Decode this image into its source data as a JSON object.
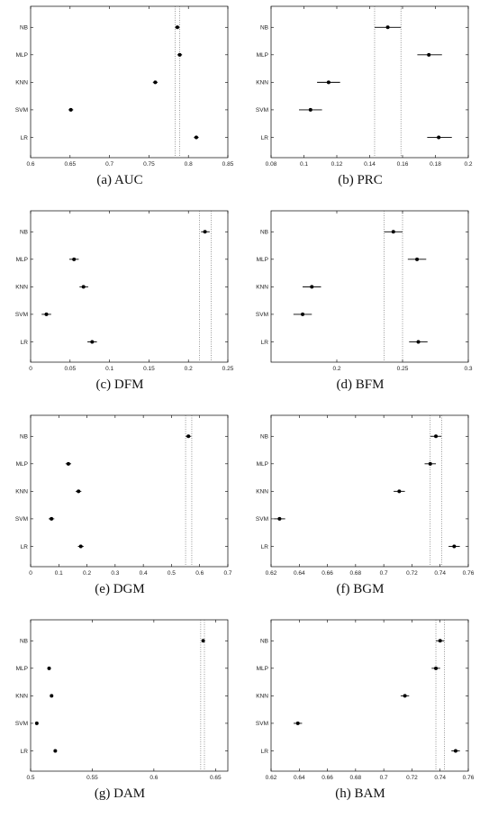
{
  "panels": [
    {
      "id": "a",
      "caption": "(a)  AUC",
      "categories": [
        "NB",
        "MLP",
        "KNN",
        "SVM",
        "LR"
      ],
      "xlim": [
        0.6,
        0.85
      ],
      "xticks": [
        0.6,
        0.65,
        0.7,
        0.75,
        0.8,
        0.85
      ],
      "xtick_labels": [
        "0.6",
        "0.65",
        "0.7",
        "0.75",
        "0.8",
        "0.85"
      ],
      "points": [
        {
          "label": "NB",
          "value": 0.786,
          "lo": 0.783,
          "hi": 0.789
        },
        {
          "label": "MLP",
          "value": 0.789,
          "lo": 0.786,
          "hi": 0.792
        },
        {
          "label": "KNN",
          "value": 0.758,
          "lo": 0.755,
          "hi": 0.761
        },
        {
          "label": "SVM",
          "value": 0.651,
          "lo": 0.648,
          "hi": 0.654
        },
        {
          "label": "LR",
          "value": 0.81,
          "lo": 0.807,
          "hi": 0.813
        }
      ],
      "ref_lines": [
        0.783,
        0.789
      ]
    },
    {
      "id": "b",
      "caption": "(b)  PRC",
      "categories": [
        "NB",
        "MLP",
        "KNN",
        "SVM",
        "LR"
      ],
      "xlim": [
        0.08,
        0.2
      ],
      "xticks": [
        0.08,
        0.1,
        0.12,
        0.14,
        0.16,
        0.18,
        0.2
      ],
      "xtick_labels": [
        "0.08",
        "0.1",
        "0.12",
        "0.14",
        "0.16",
        "0.18",
        "0.2"
      ],
      "points": [
        {
          "label": "NB",
          "value": 0.151,
          "lo": 0.143,
          "hi": 0.159
        },
        {
          "label": "MLP",
          "value": 0.176,
          "lo": 0.169,
          "hi": 0.184
        },
        {
          "label": "KNN",
          "value": 0.115,
          "lo": 0.108,
          "hi": 0.122
        },
        {
          "label": "SVM",
          "value": 0.104,
          "lo": 0.097,
          "hi": 0.111
        },
        {
          "label": "LR",
          "value": 0.182,
          "lo": 0.175,
          "hi": 0.19
        }
      ],
      "ref_lines": [
        0.143,
        0.159
      ]
    },
    {
      "id": "c",
      "caption": "(c)  DFM",
      "categories": [
        "NB",
        "MLP",
        "KNN",
        "SVM",
        "LR"
      ],
      "xlim": [
        0,
        0.25
      ],
      "xticks": [
        0,
        0.05,
        0.1,
        0.15,
        0.2,
        0.25
      ],
      "xtick_labels": [
        "0",
        "0.05",
        "0.1",
        "0.15",
        "0.2",
        "0.25"
      ],
      "points": [
        {
          "label": "NB",
          "value": 0.221,
          "lo": 0.216,
          "hi": 0.227
        },
        {
          "label": "MLP",
          "value": 0.055,
          "lo": 0.049,
          "hi": 0.061
        },
        {
          "label": "KNN",
          "value": 0.067,
          "lo": 0.062,
          "hi": 0.073
        },
        {
          "label": "SVM",
          "value": 0.02,
          "lo": 0.014,
          "hi": 0.026
        },
        {
          "label": "LR",
          "value": 0.078,
          "lo": 0.072,
          "hi": 0.084
        }
      ],
      "ref_lines": [
        0.214,
        0.229
      ]
    },
    {
      "id": "d",
      "caption": "(d)  BFM",
      "categories": [
        "NB",
        "MLP",
        "KNN",
        "SVM",
        "LR"
      ],
      "xlim": [
        0.15,
        0.3
      ],
      "xticks": [
        0.2,
        0.25,
        0.3
      ],
      "xtick_labels": [
        "0.2",
        "0.25",
        "0.3"
      ],
      "points": [
        {
          "label": "NB",
          "value": 0.243,
          "lo": 0.236,
          "hi": 0.25
        },
        {
          "label": "MLP",
          "value": 0.261,
          "lo": 0.254,
          "hi": 0.268
        },
        {
          "label": "KNN",
          "value": 0.181,
          "lo": 0.174,
          "hi": 0.188
        },
        {
          "label": "SVM",
          "value": 0.174,
          "lo": 0.167,
          "hi": 0.181
        },
        {
          "label": "LR",
          "value": 0.262,
          "lo": 0.255,
          "hi": 0.269
        }
      ],
      "ref_lines": [
        0.236,
        0.25
      ]
    },
    {
      "id": "e",
      "caption": "(e)  DGM",
      "categories": [
        "NB",
        "MLP",
        "KNN",
        "SVM",
        "LR"
      ],
      "xlim": [
        0,
        0.7
      ],
      "xticks": [
        0,
        0.1,
        0.2,
        0.3,
        0.4,
        0.5,
        0.6,
        0.7
      ],
      "xtick_labels": [
        "0",
        "0.1",
        "0.2",
        "0.3",
        "0.4",
        "0.5",
        "0.6",
        "0.7"
      ],
      "points": [
        {
          "label": "NB",
          "value": 0.56,
          "lo": 0.55,
          "hi": 0.57
        },
        {
          "label": "MLP",
          "value": 0.134,
          "lo": 0.124,
          "hi": 0.144
        },
        {
          "label": "KNN",
          "value": 0.17,
          "lo": 0.16,
          "hi": 0.18
        },
        {
          "label": "SVM",
          "value": 0.074,
          "lo": 0.064,
          "hi": 0.084
        },
        {
          "label": "LR",
          "value": 0.178,
          "lo": 0.168,
          "hi": 0.188
        }
      ],
      "ref_lines": [
        0.55,
        0.572
      ]
    },
    {
      "id": "f",
      "caption": "(f)  BGM",
      "categories": [
        "NB",
        "MLP",
        "KNN",
        "SVM",
        "LR"
      ],
      "xlim": [
        0.62,
        0.76
      ],
      "xticks": [
        0.62,
        0.64,
        0.66,
        0.68,
        0.7,
        0.72,
        0.74,
        0.76
      ],
      "xtick_labels": [
        "0.62",
        "0.64",
        "0.66",
        "0.68",
        "0.7",
        "0.72",
        "0.74",
        "0.76"
      ],
      "points": [
        {
          "label": "NB",
          "value": 0.737,
          "lo": 0.733,
          "hi": 0.741
        },
        {
          "label": "MLP",
          "value": 0.733,
          "lo": 0.729,
          "hi": 0.737
        },
        {
          "label": "KNN",
          "value": 0.711,
          "lo": 0.707,
          "hi": 0.715
        },
        {
          "label": "SVM",
          "value": 0.626,
          "lo": 0.622,
          "hi": 0.63
        },
        {
          "label": "LR",
          "value": 0.75,
          "lo": 0.746,
          "hi": 0.754
        }
      ],
      "ref_lines": [
        0.733,
        0.741
      ]
    },
    {
      "id": "g",
      "caption": "(g)  DAM",
      "categories": [
        "NB",
        "MLP",
        "KNN",
        "SVM",
        "LR"
      ],
      "xlim": [
        0.5,
        0.66
      ],
      "xticks": [
        0.5,
        0.55,
        0.6,
        0.65
      ],
      "xtick_labels": [
        "0.5",
        "0.55",
        "0.6",
        "0.65"
      ],
      "points": [
        {
          "label": "NB",
          "value": 0.64,
          "lo": 0.639,
          "hi": 0.641
        },
        {
          "label": "MLP",
          "value": 0.515,
          "lo": 0.514,
          "hi": 0.516
        },
        {
          "label": "KNN",
          "value": 0.517,
          "lo": 0.516,
          "hi": 0.518
        },
        {
          "label": "SVM",
          "value": 0.505,
          "lo": 0.504,
          "hi": 0.506
        },
        {
          "label": "LR",
          "value": 0.52,
          "lo": 0.519,
          "hi": 0.521
        }
      ],
      "ref_lines": [
        0.638,
        0.641
      ]
    },
    {
      "id": "h",
      "caption": "(h)  BAM",
      "categories": [
        "NB",
        "MLP",
        "KNN",
        "SVM",
        "LR"
      ],
      "xlim": [
        0.62,
        0.76
      ],
      "xticks": [
        0.62,
        0.64,
        0.66,
        0.68,
        0.7,
        0.72,
        0.74,
        0.76
      ],
      "xtick_labels": [
        "0.62",
        "0.64",
        "0.66",
        "0.68",
        "0.7",
        "0.72",
        "0.74",
        "0.76"
      ],
      "points": [
        {
          "label": "NB",
          "value": 0.74,
          "lo": 0.737,
          "hi": 0.743
        },
        {
          "label": "MLP",
          "value": 0.737,
          "lo": 0.734,
          "hi": 0.74
        },
        {
          "label": "KNN",
          "value": 0.715,
          "lo": 0.712,
          "hi": 0.718
        },
        {
          "label": "SVM",
          "value": 0.639,
          "lo": 0.636,
          "hi": 0.642
        },
        {
          "label": "LR",
          "value": 0.751,
          "lo": 0.748,
          "hi": 0.754
        }
      ],
      "ref_lines": [
        0.737,
        0.743
      ]
    }
  ],
  "chart_data": [
    {
      "type": "scatter",
      "subtitle": "(a)  AUC",
      "categories": [
        "NB",
        "MLP",
        "KNN",
        "SVM",
        "LR"
      ],
      "values": [
        0.786,
        0.789,
        0.758,
        0.651,
        0.81
      ],
      "xlim": [
        0.6,
        0.85
      ],
      "grid": false
    },
    {
      "type": "scatter",
      "subtitle": "(b)  PRC",
      "categories": [
        "NB",
        "MLP",
        "KNN",
        "SVM",
        "LR"
      ],
      "values": [
        0.151,
        0.176,
        0.115,
        0.104,
        0.182
      ],
      "xlim": [
        0.08,
        0.2
      ],
      "grid": false
    },
    {
      "type": "scatter",
      "subtitle": "(c)  DFM",
      "categories": [
        "NB",
        "MLP",
        "KNN",
        "SVM",
        "LR"
      ],
      "values": [
        0.221,
        0.055,
        0.067,
        0.02,
        0.078
      ],
      "xlim": [
        0,
        0.25
      ],
      "grid": false
    },
    {
      "type": "scatter",
      "subtitle": "(d)  BFM",
      "categories": [
        "NB",
        "MLP",
        "KNN",
        "SVM",
        "LR"
      ],
      "values": [
        0.243,
        0.261,
        0.181,
        0.174,
        0.262
      ],
      "xlim": [
        0.15,
        0.3
      ],
      "grid": false
    },
    {
      "type": "scatter",
      "subtitle": "(e)  DGM",
      "categories": [
        "NB",
        "MLP",
        "KNN",
        "SVM",
        "LR"
      ],
      "values": [
        0.56,
        0.134,
        0.17,
        0.074,
        0.178
      ],
      "xlim": [
        0,
        0.7
      ],
      "grid": false
    },
    {
      "type": "scatter",
      "subtitle": "(f)  BGM",
      "categories": [
        "NB",
        "MLP",
        "KNN",
        "SVM",
        "LR"
      ],
      "values": [
        0.737,
        0.733,
        0.711,
        0.626,
        0.75
      ],
      "xlim": [
        0.62,
        0.76
      ],
      "grid": false
    },
    {
      "type": "scatter",
      "subtitle": "(g)  DAM",
      "categories": [
        "NB",
        "MLP",
        "KNN",
        "SVM",
        "LR"
      ],
      "values": [
        0.64,
        0.515,
        0.517,
        0.505,
        0.52
      ],
      "xlim": [
        0.5,
        0.66
      ],
      "grid": false
    },
    {
      "type": "scatter",
      "subtitle": "(h)  BAM",
      "categories": [
        "NB",
        "MLP",
        "KNN",
        "SVM",
        "LR"
      ],
      "values": [
        0.74,
        0.737,
        0.715,
        0.639,
        0.751
      ],
      "xlim": [
        0.62,
        0.76
      ],
      "grid": false
    }
  ]
}
